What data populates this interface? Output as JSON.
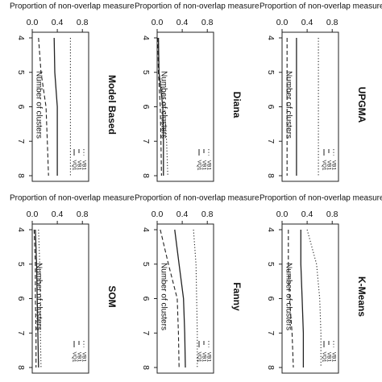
{
  "chart_data": [
    {
      "type": "line",
      "title": "Model Based",
      "xlabel": "Number of clusters",
      "ylabel": "Proportion of non-overlap measure",
      "x": [
        4,
        5,
        6,
        7,
        8
      ],
      "ylim": [
        0,
        0.9
      ],
      "ticks_x": [
        "4",
        "5",
        "6",
        "7",
        "8"
      ],
      "ticks_y": [
        "0.0",
        "0.4",
        "0.8"
      ],
      "legend": [
        "VQ1",
        "VB1",
        "VB1"
      ],
      "series": [
        {
          "name": "VQ1",
          "dash": "solid",
          "values": [
            0.35,
            0.36,
            0.4,
            0.4,
            0.4
          ]
        },
        {
          "name": "VB1",
          "dash": "dashed",
          "values": [
            0.1,
            0.14,
            0.22,
            0.24,
            0.26
          ]
        },
        {
          "name": "VB1",
          "dash": "dotted",
          "values": [
            0.61,
            0.61,
            0.61,
            0.61,
            0.61
          ]
        }
      ]
    },
    {
      "type": "line",
      "title": "Diana",
      "xlabel": "Number of clusters",
      "ylabel": "Proportion of non-overlap measure",
      "x": [
        4,
        5,
        6,
        7,
        8
      ],
      "ylim": [
        0,
        0.9
      ],
      "ticks_x": [
        "4",
        "5",
        "6",
        "7",
        "8"
      ],
      "ticks_y": [
        "0.0",
        "0.4",
        "0.8"
      ],
      "legend": [
        "VQ1",
        "VB1",
        "VB1"
      ],
      "series": [
        {
          "name": "VQ1",
          "dash": "solid",
          "values": [
            0.02,
            0.03,
            0.09,
            0.1,
            0.1
          ]
        },
        {
          "name": "VB1",
          "dash": "dashed",
          "values": [
            0.01,
            0.02,
            0.05,
            0.06,
            0.07
          ]
        },
        {
          "name": "VB1",
          "dash": "dotted",
          "values": [
            0.02,
            0.03,
            0.12,
            0.15,
            0.17
          ]
        }
      ]
    },
    {
      "type": "line",
      "title": "UPGMA",
      "xlabel": "Number of clusters",
      "ylabel": "Proportion of non-overlap measure",
      "x": [
        4,
        5,
        6,
        7,
        8
      ],
      "ylim": [
        0,
        0.9
      ],
      "ticks_x": [
        "4",
        "5",
        "6",
        "7",
        "8"
      ],
      "ticks_y": [
        "0.0",
        "0.4",
        "0.8"
      ],
      "legend": [
        "VQ1",
        "VB1",
        "VB1"
      ],
      "series": [
        {
          "name": "VQ1",
          "dash": "solid",
          "values": [
            0.23,
            0.23,
            0.23,
            0.23,
            0.23
          ]
        },
        {
          "name": "VB1",
          "dash": "dashed",
          "values": [
            0.08,
            0.08,
            0.08,
            0.08,
            0.08
          ]
        },
        {
          "name": "VB1",
          "dash": "dotted",
          "values": [
            0.58,
            0.58,
            0.58,
            0.58,
            0.58
          ]
        }
      ]
    },
    {
      "type": "line",
      "title": "SOM",
      "xlabel": "Number of clusters",
      "ylabel": "Proportion of non-overlap measure",
      "x": [
        4,
        5,
        6,
        7,
        8
      ],
      "ylim": [
        0,
        0.9
      ],
      "ticks_x": [
        "4",
        "5",
        "6",
        "7",
        "8"
      ],
      "ticks_y": [
        "0.0",
        "0.4",
        "0.8"
      ],
      "legend": [
        "VQ1",
        "VB1",
        "VB1"
      ],
      "series": [
        {
          "name": "VQ1",
          "dash": "solid",
          "values": [
            0.05,
            0.07,
            0.08,
            0.09,
            0.1
          ]
        },
        {
          "name": "VB1",
          "dash": "dashed",
          "values": [
            0.03,
            0.05,
            0.05,
            0.06,
            0.06
          ]
        },
        {
          "name": "VB1",
          "dash": "dotted",
          "values": [
            0.1,
            0.12,
            0.13,
            0.13,
            0.14
          ]
        }
      ]
    },
    {
      "type": "line",
      "title": "Fanny",
      "xlabel": "Number of clusters",
      "ylabel": "Proportion of non-overlap measure",
      "x": [
        4,
        5,
        6,
        7,
        8
      ],
      "ylim": [
        0,
        0.9
      ],
      "ticks_x": [
        "4",
        "5",
        "6",
        "7",
        "8"
      ],
      "ticks_y": [
        "0.0",
        "0.4",
        "0.8"
      ],
      "legend": [
        "VQ1",
        "VB1",
        "VB1"
      ],
      "series": [
        {
          "name": "VQ1",
          "dash": "solid",
          "values": [
            0.28,
            0.35,
            0.42,
            0.44,
            0.45
          ]
        },
        {
          "name": "VB1",
          "dash": "dashed",
          "values": [
            0.05,
            0.18,
            0.32,
            0.34,
            0.35
          ]
        },
        {
          "name": "VB1",
          "dash": "dotted",
          "values": [
            0.58,
            0.62,
            0.63,
            0.64,
            0.64
          ]
        }
      ]
    },
    {
      "type": "line",
      "title": "K-Means",
      "xlabel": "Number of clusters",
      "ylabel": "Proportion of non-overlap measure",
      "x": [
        4,
        5,
        6,
        7,
        8
      ],
      "ylim": [
        0,
        0.9
      ],
      "ticks_x": [
        "4",
        "5",
        "6",
        "7",
        "8"
      ],
      "ticks_y": [
        "0.0",
        "0.4",
        "0.8"
      ],
      "legend": [
        "VQ1",
        "VB1",
        "VB1"
      ],
      "series": [
        {
          "name": "VQ1",
          "dash": "solid",
          "values": [
            0.3,
            0.3,
            0.32,
            0.34,
            0.34
          ]
        },
        {
          "name": "VB1",
          "dash": "dashed",
          "values": [
            0.1,
            0.1,
            0.12,
            0.16,
            0.18
          ]
        },
        {
          "name": "VB1",
          "dash": "dotted",
          "values": [
            0.4,
            0.55,
            0.6,
            0.62,
            0.62
          ]
        }
      ]
    }
  ]
}
